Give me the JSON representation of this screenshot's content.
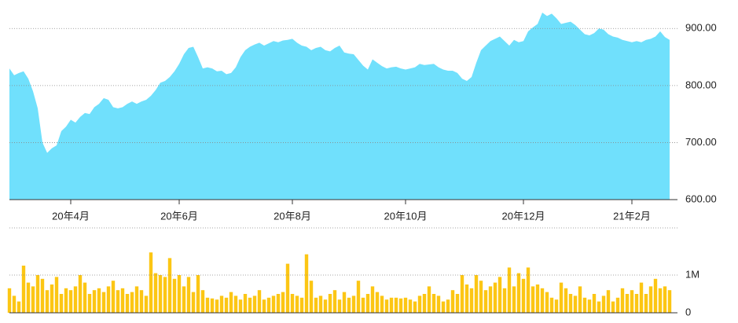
{
  "chart_data": [
    {
      "type": "area",
      "color": "#70e0fc",
      "ylim": [
        600,
        950
      ],
      "yticks": [
        {
          "value": 600,
          "label": "600.00"
        },
        {
          "value": 700,
          "label": "700.00"
        },
        {
          "value": 800,
          "label": "800.00"
        },
        {
          "value": 900,
          "label": "900.00"
        }
      ],
      "grid": true,
      "categories": [
        null,
        null,
        null,
        null,
        null,
        null,
        null,
        null,
        null,
        null,
        null,
        null,
        null,
        "20年4月",
        null,
        null,
        null,
        null,
        null,
        null,
        null,
        null,
        null,
        null,
        null,
        null,
        null,
        null,
        null,
        null,
        null,
        null,
        null,
        null,
        null,
        null,
        "20年6月",
        null,
        null,
        null,
        null,
        null,
        null,
        null,
        null,
        null,
        null,
        null,
        null,
        null,
        null,
        null,
        null,
        null,
        null,
        null,
        null,
        null,
        null,
        null,
        "20年8月",
        null,
        null,
        null,
        null,
        null,
        null,
        null,
        null,
        null,
        null,
        null,
        null,
        null,
        null,
        null,
        null,
        null,
        null,
        null,
        null,
        null,
        null,
        null,
        "20年10月",
        null,
        null,
        null,
        null,
        null,
        null,
        null,
        null,
        null,
        null,
        null,
        null,
        null,
        null,
        null,
        null,
        null,
        null,
        null,
        null,
        null,
        null,
        null,
        null,
        "20年12月",
        null,
        null,
        null,
        null,
        null,
        null,
        null,
        null,
        null,
        null,
        null,
        null,
        null,
        null,
        null,
        null,
        null,
        null,
        null,
        null,
        null,
        null,
        "21年2月",
        null,
        null,
        null,
        null,
        null,
        null,
        null,
        null
      ],
      "values": [
        830,
        818,
        822,
        825,
        812,
        790,
        760,
        700,
        682,
        690,
        695,
        720,
        728,
        740,
        735,
        745,
        752,
        750,
        762,
        768,
        778,
        775,
        762,
        760,
        762,
        768,
        772,
        768,
        772,
        775,
        782,
        792,
        805,
        808,
        815,
        825,
        838,
        855,
        866,
        868,
        850,
        830,
        832,
        830,
        825,
        826,
        820,
        822,
        832,
        850,
        862,
        868,
        872,
        875,
        870,
        874,
        878,
        876,
        879,
        880,
        882,
        875,
        870,
        868,
        862,
        866,
        868,
        862,
        860,
        866,
        870,
        858,
        856,
        855,
        845,
        835,
        828,
        846,
        840,
        834,
        830,
        832,
        833,
        830,
        828,
        830,
        832,
        838,
        836,
        837,
        838,
        832,
        828,
        826,
        826,
        822,
        812,
        808,
        815,
        840,
        862,
        870,
        878,
        882,
        886,
        878,
        870,
        880,
        876,
        878,
        895,
        902,
        908,
        928,
        922,
        926,
        918,
        908,
        910,
        912,
        906,
        898,
        890,
        888,
        892,
        900,
        898,
        890,
        886,
        884,
        880,
        878,
        876,
        878,
        876,
        880,
        882,
        886,
        895,
        885,
        880
      ]
    },
    {
      "type": "bar",
      "color": "#fcc614",
      "ylim": [
        0,
        2000000
      ],
      "yticks": [
        0,
        {
          "value": 1000000,
          "label": "1M"
        }
      ],
      "grid": true,
      "values": [
        650000,
        450000,
        300000,
        1250000,
        800000,
        700000,
        1000000,
        900000,
        600000,
        750000,
        950000,
        500000,
        650000,
        600000,
        700000,
        1000000,
        800000,
        500000,
        600000,
        650000,
        550000,
        700000,
        850000,
        600000,
        650000,
        500000,
        550000,
        700000,
        600000,
        450000,
        1600000,
        1050000,
        1000000,
        950000,
        1450000,
        900000,
        1000000,
        700000,
        950000,
        550000,
        1000000,
        600000,
        400000,
        380000,
        350000,
        450000,
        400000,
        550000,
        450000,
        350000,
        500000,
        400000,
        450000,
        600000,
        350000,
        400000,
        450000,
        500000,
        550000,
        1300000,
        500000,
        450000,
        400000,
        1550000,
        850000,
        400000,
        450000,
        350000,
        500000,
        600000,
        350000,
        550000,
        400000,
        450000,
        850000,
        400000,
        500000,
        700000,
        550000,
        450000,
        350000,
        400000,
        400000,
        380000,
        400000,
        350000,
        300000,
        450000,
        500000,
        700000,
        500000,
        450000,
        300000,
        350000,
        600000,
        500000,
        1000000,
        750000,
        650000,
        1000000,
        850000,
        600000,
        700000,
        800000,
        950000,
        650000,
        1200000,
        700000,
        1050000,
        900000,
        1200000,
        700000,
        750000,
        650000,
        550000,
        400000,
        350000,
        800000,
        650000,
        500000,
        450000,
        700000,
        400000,
        350000,
        500000,
        300000,
        450000,
        600000,
        300000,
        400000,
        650000,
        500000,
        600000,
        500000,
        800000,
        500000,
        700000,
        900000,
        650000,
        700000,
        600000
      ]
    }
  ]
}
